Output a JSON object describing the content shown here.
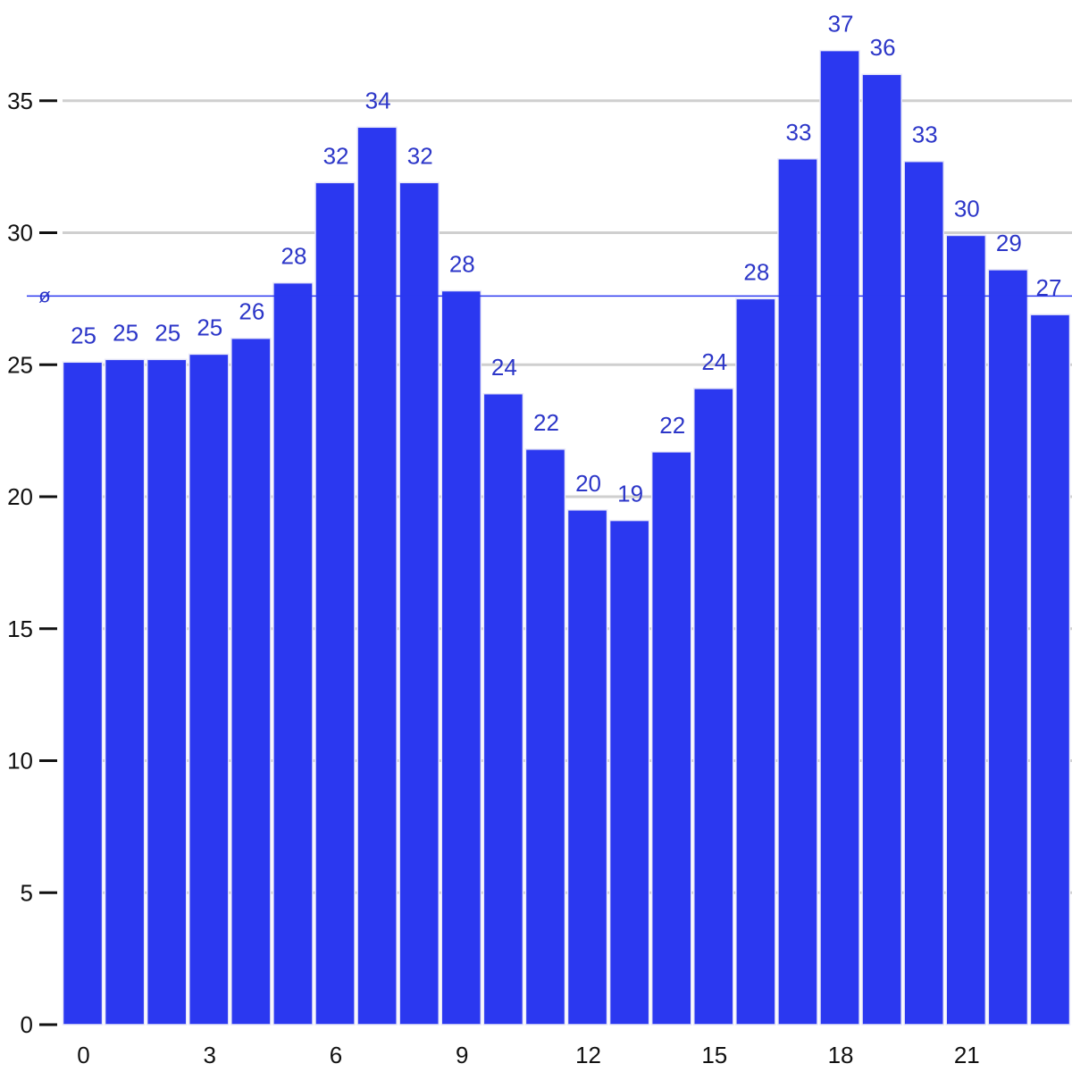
{
  "chart_data": {
    "type": "bar",
    "categories": [
      "0",
      "1",
      "2",
      "3",
      "4",
      "5",
      "6",
      "7",
      "8",
      "9",
      "10",
      "11",
      "12",
      "13",
      "14",
      "15",
      "16",
      "17",
      "18",
      "19",
      "20",
      "21",
      "22",
      "23"
    ],
    "values": [
      25.1,
      25.2,
      25.2,
      25.4,
      26.0,
      28.1,
      31.9,
      34.0,
      31.9,
      27.8,
      23.9,
      21.8,
      19.5,
      19.1,
      21.7,
      24.1,
      27.5,
      32.8,
      36.9,
      36.0,
      32.7,
      29.9,
      28.6,
      26.9
    ],
    "value_labels": [
      "25",
      "25",
      "25",
      "25",
      "26",
      "28",
      "32",
      "34",
      "32",
      "28",
      "24",
      "22",
      "20",
      "19",
      "22",
      "24",
      "28",
      "33",
      "37",
      "36",
      "33",
      "30",
      "29",
      "27"
    ],
    "x_tick_labels": [
      "0",
      "3",
      "6",
      "9",
      "12",
      "15",
      "18",
      "21"
    ],
    "y_tick_labels": [
      "0",
      "5",
      "10",
      "15",
      "20",
      "25",
      "30",
      "35"
    ],
    "ylim": [
      0,
      38.5
    ],
    "average": {
      "label": "ø",
      "value": 27.6
    },
    "grid": true,
    "title": "",
    "xlabel": "",
    "ylabel": "",
    "colors": {
      "bar": "#2b38f0",
      "bar_edge": "#e8e8f8",
      "label": "#2c36c8",
      "grid": "#cfcfcf",
      "axis_text": "#111111",
      "average_line": "#2b38f0"
    }
  }
}
